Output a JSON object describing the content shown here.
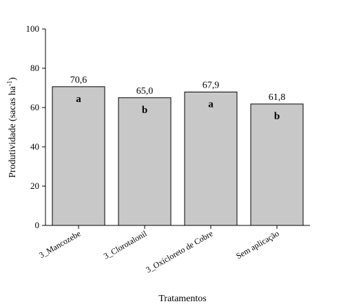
{
  "chart_data": {
    "type": "bar",
    "categories": [
      "3_Mancozebe",
      "3_Clorotalonil",
      "3_Oxicloreto de Cobre",
      "Sem aplicação"
    ],
    "values": [
      70.6,
      65.0,
      67.9,
      61.8
    ],
    "value_labels": [
      "70,6",
      "65,0",
      "67,9",
      "61,8"
    ],
    "letters": [
      "a",
      "b",
      "a",
      "b"
    ],
    "xlabel": "Tratamentos",
    "ylabel_main": "Produtividade (sacas ha",
    "ylabel_sup": "-1",
    "ylabel_end": ")",
    "ylim": [
      0,
      100
    ],
    "yticks": [
      0,
      20,
      40,
      60,
      80,
      100
    ],
    "bar_color": "#c8c8c8",
    "grid": false,
    "legend": "none"
  }
}
